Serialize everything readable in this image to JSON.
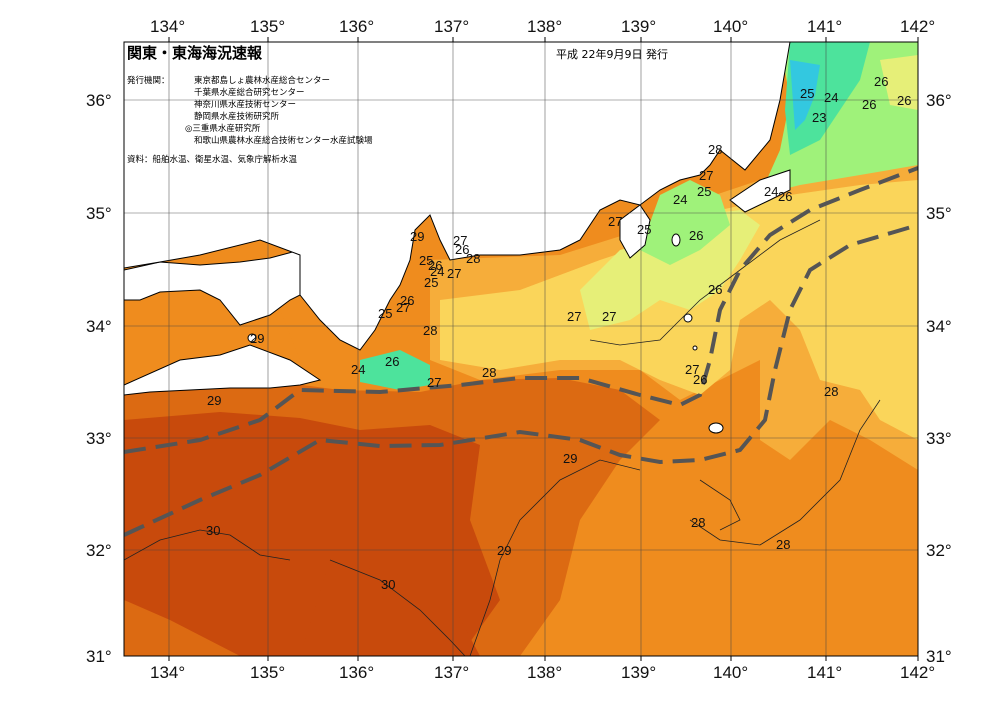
{
  "header": {
    "title": "関東・東海海況速報",
    "date": "平成 22年9月9日 発行"
  },
  "issuers": {
    "label": "発行機関：",
    "orgs": [
      "東京都島しょ農林水産総合センター",
      "千葉県水産総合研究センター",
      "神奈川県水産技術センター",
      "静岡県水産技術研究所",
      "◎三重県水産研究所",
      "和歌山県農林水産総合技術センター水産試験場"
    ]
  },
  "source": "資料：船舶水温、衛星水温、気象庁解析水温",
  "axes": {
    "lon_ticks": [
      "134°",
      "135°",
      "136°",
      "137°",
      "138°",
      "139°",
      "140°",
      "141°",
      "142°"
    ],
    "lat_ticks": [
      "36°",
      "35°",
      "34°",
      "33°",
      "32°",
      "31°"
    ],
    "lat_ticks_left": [
      "36°",
      "35°",
      "34°",
      "33°",
      "32°",
      "31°"
    ],
    "lat_ticks_right": [
      "36°",
      "35°",
      "34°",
      "33°",
      "32°",
      "31°"
    ]
  },
  "contour_labels": [
    {
      "text": "25"
    },
    {
      "text": "24"
    },
    {
      "text": "26"
    },
    {
      "text": "26"
    },
    {
      "text": "26"
    },
    {
      "text": "23"
    },
    {
      "text": "28"
    },
    {
      "text": "27"
    },
    {
      "text": "25"
    },
    {
      "text": "24"
    },
    {
      "text": "24"
    },
    {
      "text": "26"
    },
    {
      "text": "27"
    },
    {
      "text": "25"
    },
    {
      "text": "26"
    },
    {
      "text": "29"
    },
    {
      "text": "27"
    },
    {
      "text": "26"
    },
    {
      "text": "28"
    },
    {
      "text": "25"
    },
    {
      "text": "24"
    },
    {
      "text": "27"
    },
    {
      "text": "26"
    },
    {
      "text": "26"
    },
    {
      "text": "25"
    },
    {
      "text": "27"
    },
    {
      "text": "28"
    },
    {
      "text": "27"
    },
    {
      "text": "27"
    },
    {
      "text": "26"
    },
    {
      "text": "24"
    },
    {
      "text": "25"
    },
    {
      "text": "26"
    },
    {
      "text": "27"
    },
    {
      "text": "28"
    },
    {
      "text": "27"
    },
    {
      "text": "26"
    },
    {
      "text": "29"
    },
    {
      "text": "29"
    },
    {
      "text": "28"
    },
    {
      "text": "29"
    },
    {
      "text": "30"
    },
    {
      "text": "29"
    },
    {
      "text": "30"
    },
    {
      "text": "28"
    },
    {
      "text": "28"
    }
  ],
  "colors": {
    "sst_30": "#c84a0c",
    "sst_29": "#dc6a12",
    "sst_28": "#ef8c1e",
    "sst_27": "#f6ad3a",
    "sst_26": "#fad55a",
    "sst_25": "#e6ef78",
    "sst_24": "#9ff27a",
    "sst_23": "#4de39c",
    "sst_22": "#33c8e0",
    "land": "#ffffff",
    "kuroshio_line": "#555555"
  }
}
